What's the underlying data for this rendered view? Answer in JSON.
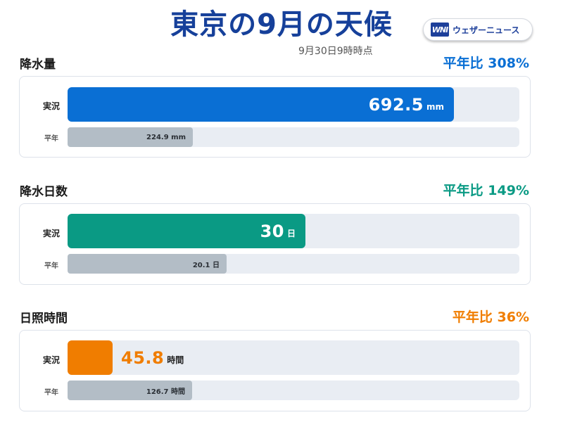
{
  "title": "東京の9月の天候",
  "timestamp": "9月30日9時時点",
  "logo": {
    "mark": "WNI",
    "text": "ウェザーニュース"
  },
  "labels": {
    "actual": "実況",
    "normal": "平年"
  },
  "sections": [
    {
      "title": "降水量",
      "ratio_text": "平年比 308%",
      "color": "#0a6fd4",
      "actual_value": "692.5",
      "actual_unit": "mm",
      "normal_text": "224.9 mm"
    },
    {
      "title": "降水日数",
      "ratio_text": "平年比 149%",
      "color": "#0a9a84",
      "actual_value": "30",
      "actual_unit": "日",
      "normal_text": "20.1 日"
    },
    {
      "title": "日照時間",
      "ratio_text": "平年比 36%",
      "color": "#f07d00",
      "actual_value": "45.8",
      "actual_unit": "時間",
      "normal_text": "126.7 時間"
    }
  ],
  "chart_data": [
    {
      "type": "bar",
      "title": "降水量",
      "categories": [
        "実況",
        "平年"
      ],
      "values": [
        692.5,
        224.9
      ],
      "unit": "mm",
      "ratio_percent": 308
    },
    {
      "type": "bar",
      "title": "降水日数",
      "categories": [
        "実況",
        "平年"
      ],
      "values": [
        30,
        20.1
      ],
      "unit": "日",
      "ratio_percent": 149
    },
    {
      "type": "bar",
      "title": "日照時間",
      "categories": [
        "実況",
        "平年"
      ],
      "values": [
        45.8,
        126.7
      ],
      "unit": "時間",
      "ratio_percent": 36
    }
  ]
}
